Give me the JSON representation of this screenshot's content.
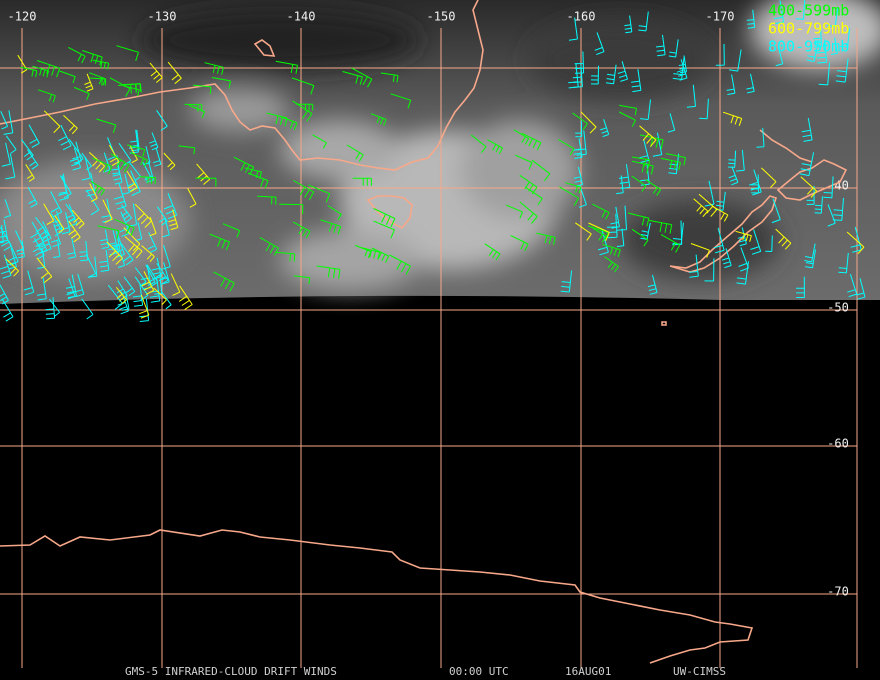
{
  "grid": {
    "longitude_labels": [
      "-120",
      "-130",
      "-140",
      "-150",
      "-160",
      "-170"
    ],
    "latitude_labels": [
      "-40",
      "-50",
      "-60",
      "-70"
    ]
  },
  "legend": {
    "items": [
      "400-599mb",
      "600-799mb",
      "800-950mb"
    ]
  },
  "footer": {
    "product": "GMS-5 INFRARED-CLOUD DRIFT WINDS",
    "time": "00:00 UTC",
    "date": "16AUG01",
    "source": "UW-CIMSS"
  }
}
